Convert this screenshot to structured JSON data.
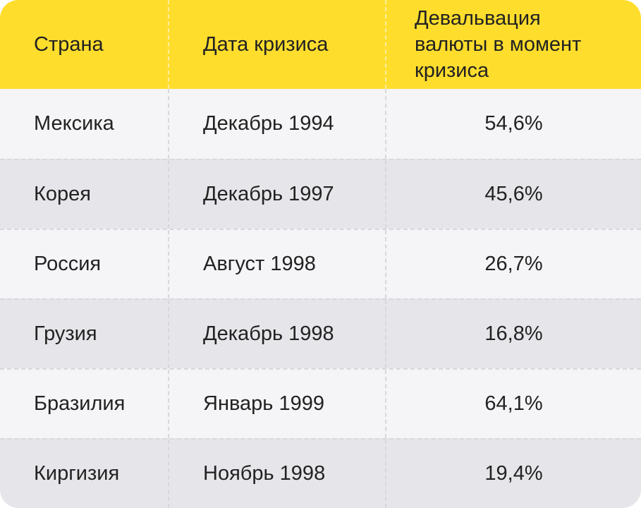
{
  "table": {
    "headers": [
      "Страна",
      "Дата кризиса",
      "Девальвация\nвалюты в момент\nкризиса"
    ],
    "rows": [
      [
        "Мексика",
        "Декабрь 1994",
        "54,6%"
      ],
      [
        "Корея",
        "Декабрь 1997",
        "45,6%"
      ],
      [
        "Россия",
        "Август 1998",
        "26,7%"
      ],
      [
        "Грузия",
        "Декабрь 1998",
        "16,8%"
      ],
      [
        "Бразилия",
        "Январь 1999",
        "64,1%"
      ],
      [
        "Киргизия",
        "Ноябрь 1998",
        "19,4%"
      ]
    ]
  },
  "colors": {
    "header_bg": "#FFDD2D",
    "row_light": "#F5F5F7",
    "row_dark": "#E6E6EA",
    "text": "#222222"
  }
}
